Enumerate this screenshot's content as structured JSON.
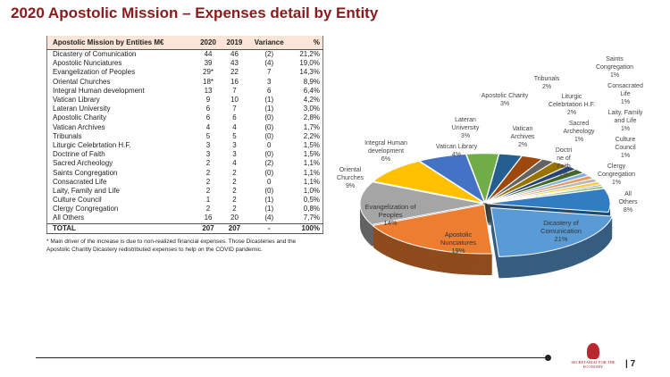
{
  "title": "2020 Apostolic Mission – Expenses detail by Entity",
  "table": {
    "headers": [
      "Apostolic Mission by Entities   M€",
      "2020",
      "2019",
      "Variance",
      "%"
    ],
    "rows": [
      [
        "Dicastery of Comunication",
        "44",
        "46",
        "(2)",
        "21,2%"
      ],
      [
        "Apostolic Nunciatures",
        "39",
        "43",
        "(4)",
        "19,0%"
      ],
      [
        "Evangelization of Peoples",
        "29*",
        "22",
        "7",
        "14,3%"
      ],
      [
        "Oriental Churches",
        "18*",
        "16",
        "3",
        "8,9%"
      ],
      [
        "Integral Human development",
        "13",
        "7",
        "6",
        "6,4%"
      ],
      [
        "Vatican Library",
        "9",
        "10",
        "(1)",
        "4,2%"
      ],
      [
        "Lateran University",
        "6",
        "7",
        "(1)",
        "3,0%"
      ],
      [
        "Apostolic Charity",
        "6",
        "6",
        "(0)",
        "2,8%"
      ],
      [
        "Vatican Archives",
        "4",
        "4",
        "(0)",
        "1,7%"
      ],
      [
        "Tribunals",
        "5",
        "5",
        "(0)",
        "2,2%"
      ],
      [
        "Liturgic Celebrtation H.F.",
        "3",
        "3",
        "0",
        "1,5%"
      ],
      [
        "Doctrine of Faith",
        "3",
        "3",
        "(0)",
        "1,5%"
      ],
      [
        "Sacred Archeology",
        "2",
        "4",
        "(2)",
        "1,1%"
      ],
      [
        "Saints Congregation",
        "2",
        "2",
        "(0)",
        "1,1%"
      ],
      [
        "Consacrated Life",
        "2",
        "2",
        "0",
        "1,1%"
      ],
      [
        "Laity, Family and Life",
        "2",
        "2",
        "(0)",
        "1,0%"
      ],
      [
        "Culture Council",
        "1",
        "2",
        "(1)",
        "0,5%"
      ],
      [
        "Clergy Congregation",
        "2",
        "2",
        "(1)",
        "0,8%"
      ],
      [
        "All Others",
        "16",
        "20",
        "(4)",
        "7,7%"
      ]
    ],
    "total": [
      "TOTAL",
      "207",
      "207",
      "-",
      "100%"
    ]
  },
  "note": "* Main driver of the increase is due to non-realized financial expenses. Those Dicasteries  and the Apostolic Charitly Dicastery redistributed expenses to help on the COVID pandemic.",
  "chart_data": {
    "type": "pie",
    "title": "",
    "slices": [
      {
        "name": "Dicastery of\nComunication",
        "label": "21%",
        "value": 21.2,
        "color": "#5b9bd5"
      },
      {
        "name": "Apostolic\nNunciatures",
        "label": "19%",
        "value": 19.0,
        "color": "#ed7d31"
      },
      {
        "name": "Evangelization of\nPeoples",
        "label": "14%",
        "value": 14.3,
        "color": "#a5a5a5"
      },
      {
        "name": "Oriental\nChurches",
        "label": "9%",
        "value": 8.9,
        "color": "#ffc000"
      },
      {
        "name": "Integral Human\ndevelopment",
        "label": "6%",
        "value": 6.4,
        "color": "#4472c4"
      },
      {
        "name": "Vatican Library",
        "label": "4%",
        "value": 4.2,
        "color": "#70ad47"
      },
      {
        "name": "Lateran\nUniversity",
        "label": "3%",
        "value": 3.0,
        "color": "#255e91"
      },
      {
        "name": "Apostolic Charity",
        "label": "3%",
        "value": 2.8,
        "color": "#9e480e"
      },
      {
        "name": "Vatican\nArchives",
        "label": "2%",
        "value": 1.7,
        "color": "#636363"
      },
      {
        "name": "Tribunals",
        "label": "2%",
        "value": 2.2,
        "color": "#997300"
      },
      {
        "name": "Liturgic\nCelebrtation H.F.",
        "label": "2%",
        "value": 1.5,
        "color": "#264478"
      },
      {
        "name": "Doctri\nne of\nFaith",
        "label": "1%",
        "value": 1.5,
        "color": "#43682b"
      },
      {
        "name": "Sacred\nArcheology",
        "label": "1%",
        "value": 1.1,
        "color": "#7cafdd"
      },
      {
        "name": "Saints\nCongregation",
        "label": "1%",
        "value": 1.1,
        "color": "#f1975a"
      },
      {
        "name": "Consacrated\nLife",
        "label": "1%",
        "value": 1.1,
        "color": "#b7b7b7"
      },
      {
        "name": "Laity, Family\nand Life",
        "label": "1%",
        "value": 1.0,
        "color": "#ffcd33"
      },
      {
        "name": "Culture\nCouncil",
        "label": "1%",
        "value": 0.5,
        "color": "#698ed0"
      },
      {
        "name": "Clergy\nCongregation",
        "label": "1%",
        "value": 0.8,
        "color": "#8cc168"
      },
      {
        "name": "All\nOthers",
        "label": "8%",
        "value": 7.7,
        "color": "#327dc2"
      }
    ]
  },
  "footer": {
    "logo_text": "SECRETARIAT FOR THE ECONOMY",
    "page": "7"
  }
}
